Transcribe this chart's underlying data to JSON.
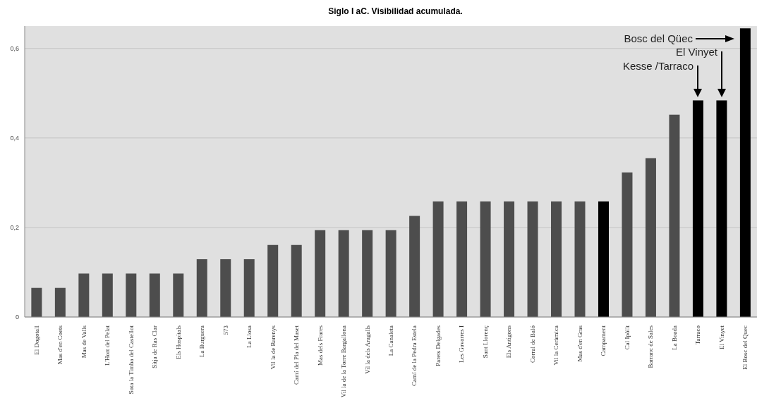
{
  "chart_data": {
    "type": "bar",
    "title": "Siglo I aC. Visibilidad acumulada.",
    "categories": [
      "El Dogotall",
      "Mas d'en Coets",
      "Mas de Valls",
      "L'Hort del Pelat",
      "Sota la Timba del Castellot",
      "Sitja de Ras Clar",
      "Els Hospitals",
      "La Burguera",
      "573",
      "La Llosa",
      "Vil la de Barenys",
      "Camí del Pla del Maset",
      "Mas dels Frares",
      "Vil la de la Torre Bargallona",
      "Vil la dels Aragalls",
      "La Canaleta",
      "Camí de la Pedra Estela",
      "Parets Delgades",
      "Les Gavarres I",
      "Sant Llorenç",
      "Els Antigons",
      "Corral de Baló",
      "Vil la Ceràmica",
      "Mas d'en Gras",
      "Campament",
      "Cal Ipòlit",
      "Barranc de Sales",
      "La Boada",
      "Tarraco",
      "El Vinyet",
      "El Bosc del Quec"
    ],
    "values": [
      0.065,
      0.065,
      0.097,
      0.097,
      0.097,
      0.097,
      0.097,
      0.129,
      0.129,
      0.129,
      0.161,
      0.161,
      0.194,
      0.194,
      0.194,
      0.194,
      0.226,
      0.258,
      0.258,
      0.258,
      0.258,
      0.258,
      0.258,
      0.258,
      0.258,
      0.323,
      0.355,
      0.452,
      0.484,
      0.484,
      0.645
    ],
    "colors": [
      "#4d4d4d",
      "#4d4d4d",
      "#4d4d4d",
      "#4d4d4d",
      "#4d4d4d",
      "#4d4d4d",
      "#4d4d4d",
      "#4d4d4d",
      "#4d4d4d",
      "#4d4d4d",
      "#4d4d4d",
      "#4d4d4d",
      "#4d4d4d",
      "#4d4d4d",
      "#4d4d4d",
      "#4d4d4d",
      "#4d4d4d",
      "#4d4d4d",
      "#4d4d4d",
      "#4d4d4d",
      "#4d4d4d",
      "#4d4d4d",
      "#4d4d4d",
      "#4d4d4d",
      "#000000",
      "#4d4d4d",
      "#4d4d4d",
      "#4d4d4d",
      "#000000",
      "#000000",
      "#000000"
    ],
    "ylim": [
      0,
      0.65
    ],
    "yticks": [
      0,
      {
        "value": 0.2,
        "label": "0,2"
      },
      {
        "value": 0.4,
        "label": "0,4"
      },
      {
        "value": 0.6,
        "label": "0,6"
      }
    ],
    "grid": "y",
    "annotations": [
      "Kesse /Tarraco",
      "El Vinyet",
      "Bosc del Qüec"
    ]
  }
}
